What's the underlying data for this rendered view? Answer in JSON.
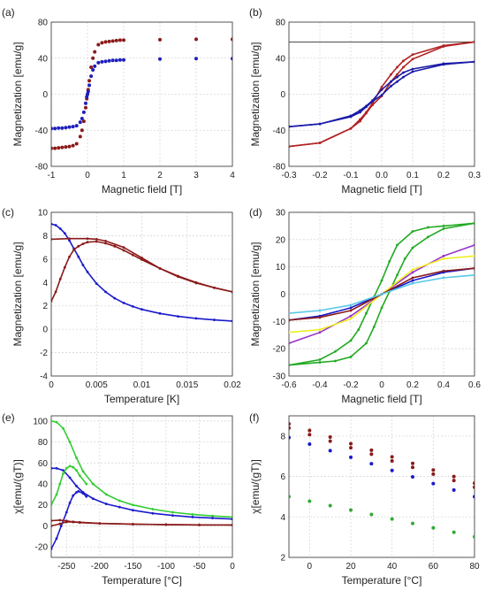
{
  "figure": {
    "panels": [
      {
        "id": "a",
        "label": "(a)",
        "xlabel": "Magnetic field [T]",
        "ylabel": "Magnetization [emu/g]",
        "xlim": [
          -1,
          4
        ],
        "ylim": [
          -80,
          80
        ],
        "xticks": [
          -1,
          0,
          1,
          2,
          3,
          4
        ],
        "yticks": [
          -80,
          -40,
          0,
          40,
          80
        ]
      },
      {
        "id": "b",
        "label": "(b)",
        "xlabel": "Magnetic field [T]",
        "ylabel": "Magnetization [emu/g]",
        "xlim": [
          -0.3,
          0.3
        ],
        "ylim": [
          -80,
          80
        ],
        "xticks": [
          -0.3,
          -0.2,
          -0.1,
          0.0,
          0.1,
          0.2,
          0.3
        ],
        "xtick_labels": [
          "-0.3",
          "-0.2",
          "-0.1",
          "0.0",
          "0.1",
          "0.2",
          "0.3"
        ],
        "yticks": [
          -80,
          -40,
          0,
          40,
          80
        ]
      },
      {
        "id": "c",
        "label": "(c)",
        "xlabel": "Temperature [K]",
        "ylabel": "Magnetization [emu/g]",
        "xlim": [
          0,
          0.02
        ],
        "ylim": [
          -4,
          10
        ],
        "xticks": [
          0,
          0.005,
          0.01,
          0.015,
          0.02
        ],
        "xtick_labels": [
          "0",
          "0.005",
          "0.01",
          "0.015",
          "0.02"
        ],
        "yticks": [
          -4,
          -2,
          0,
          2,
          4,
          6,
          8,
          10
        ]
      },
      {
        "id": "d",
        "label": "(d)",
        "xlabel": "Magnetic field [T]",
        "ylabel": "Magnetization [emu/g]",
        "xlim": [
          -0.6,
          0.6
        ],
        "ylim": [
          -30,
          30
        ],
        "xticks": [
          -0.6,
          -0.4,
          -0.2,
          0,
          0.2,
          0.4,
          0.6
        ],
        "xtick_labels": [
          "-0.6",
          "-0.4",
          "-0.2",
          "0",
          "0.2",
          "0.4",
          "0.6"
        ],
        "yticks": [
          -30,
          -20,
          -10,
          0,
          10,
          20,
          30
        ]
      },
      {
        "id": "e",
        "label": "(e)",
        "xlabel": "Temperature [°C]",
        "ylabel": "χ[emu/(gT)]",
        "xlim": [
          -273,
          0
        ],
        "ylim": [
          -30,
          105
        ],
        "xticks": [
          -250,
          -200,
          -150,
          -100,
          -50,
          0
        ],
        "yticks": [
          -20,
          0,
          20,
          40,
          60,
          80,
          100
        ]
      },
      {
        "id": "f",
        "label": "(f)",
        "xlabel": "Temperature [°C]",
        "ylabel": "χ[emu/(gT)]",
        "xlim": [
          -10,
          80
        ],
        "ylim": [
          2,
          9
        ],
        "xticks": [
          0,
          20,
          40,
          60,
          80
        ],
        "yticks": [
          2,
          4,
          6,
          8
        ]
      }
    ]
  },
  "chart_data": [
    {
      "type": "scatter",
      "panel": "a",
      "series": [
        {
          "color": "#8b1a1a",
          "x": [
            -1,
            -0.9,
            -0.8,
            -0.7,
            -0.6,
            -0.5,
            -0.4,
            -0.3,
            -0.2,
            -0.15,
            -0.1,
            -0.05,
            -0.02,
            0,
            0.02,
            0.05,
            0.1,
            0.15,
            0.2,
            0.3,
            0.4,
            0.5,
            0.6,
            0.7,
            0.8,
            0.9,
            1,
            2,
            3,
            4
          ],
          "y": [
            -60,
            -60,
            -59.5,
            -59,
            -58.5,
            -58,
            -57,
            -55,
            -47,
            -40,
            -30,
            -15,
            -5,
            0,
            5,
            15,
            30,
            40,
            47,
            55,
            57,
            58,
            58.5,
            59,
            59.5,
            60,
            60,
            60.5,
            61,
            61
          ]
        },
        {
          "color": "#1f1fbf",
          "x": [
            -1,
            -0.9,
            -0.8,
            -0.7,
            -0.6,
            -0.5,
            -0.4,
            -0.3,
            -0.2,
            -0.15,
            -0.1,
            -0.05,
            -0.02,
            0,
            0.02,
            0.05,
            0.1,
            0.15,
            0.2,
            0.3,
            0.4,
            0.5,
            0.6,
            0.7,
            0.8,
            0.9,
            1,
            2,
            3,
            4
          ],
          "y": [
            -38,
            -38,
            -37.5,
            -37.5,
            -37,
            -36.5,
            -36,
            -35,
            -31,
            -27,
            -20,
            -10,
            -3,
            0,
            3,
            10,
            20,
            27,
            31,
            35,
            36,
            36.5,
            37,
            37.5,
            37.5,
            38,
            38,
            39,
            39.5,
            39.5
          ]
        }
      ]
    },
    {
      "type": "line",
      "panel": "b",
      "series": [
        {
          "color": "#b22222",
          "x": [
            -0.3,
            -0.2,
            -0.1,
            -0.07,
            -0.05,
            -0.03,
            0,
            0.03,
            0.05,
            0.07,
            0.1,
            0.2,
            0.3
          ],
          "y": [
            -58,
            -54,
            -38,
            -30,
            -21,
            -12,
            -2,
            14,
            22,
            30,
            39,
            53,
            58
          ]
        },
        {
          "color": "#b22222",
          "x": [
            0.3,
            0.2,
            0.1,
            0.07,
            0.05,
            0.03,
            0,
            -0.03,
            -0.05,
            -0.07,
            -0.1,
            -0.2,
            -0.3
          ],
          "y": [
            58,
            54,
            44,
            37,
            30,
            22,
            8,
            -10,
            -20,
            -28,
            -38,
            -54,
            -58
          ]
        },
        {
          "color": "#1a1aa8",
          "x": [
            -0.3,
            -0.2,
            -0.1,
            -0.07,
            -0.05,
            -0.03,
            0,
            0.03,
            0.05,
            0.07,
            0.1,
            0.2,
            0.3
          ],
          "y": [
            -36,
            -33,
            -25,
            -20,
            -14,
            -8,
            -1,
            9,
            14,
            19,
            25,
            33,
            36
          ]
        },
        {
          "color": "#1a1aa8",
          "x": [
            0.3,
            0.2,
            0.1,
            0.07,
            0.05,
            0.03,
            0,
            -0.03,
            -0.05,
            -0.07,
            -0.1,
            -0.2,
            -0.3
          ],
          "y": [
            36,
            34,
            28,
            24,
            19,
            14,
            5,
            -7,
            -13,
            -18,
            -24,
            -33,
            -36
          ]
        }
      ],
      "reference_lines": [
        {
          "y": 58,
          "color": "#333333"
        }
      ]
    },
    {
      "type": "line",
      "panel": "c",
      "series": [
        {
          "color": "#1a1acc",
          "x": [
            0,
            0.0005,
            0.001,
            0.0015,
            0.002,
            0.0025,
            0.003,
            0.0035,
            0.004,
            0.005,
            0.006,
            0.007,
            0.008,
            0.009,
            0.01,
            0.012,
            0.014,
            0.016,
            0.018,
            0.02
          ],
          "y": [
            9.0,
            8.9,
            8.6,
            8.2,
            7.6,
            6.9,
            6.2,
            5.5,
            4.9,
            3.9,
            3.2,
            2.65,
            2.25,
            1.95,
            1.7,
            1.35,
            1.1,
            0.93,
            0.8,
            0.7
          ]
        },
        {
          "color": "#8b1a1a",
          "x": [
            0,
            0.0005,
            0.001,
            0.0015,
            0.002,
            0.0025,
            0.003,
            0.0035,
            0.004,
            0.005,
            0.006,
            0.007,
            0.008,
            0.009,
            0.01,
            0.012,
            0.014,
            0.016,
            0.018,
            0.02
          ],
          "y": [
            2.4,
            3.2,
            4.3,
            5.3,
            6.2,
            6.8,
            7.1,
            7.3,
            7.45,
            7.5,
            7.35,
            7.1,
            6.75,
            6.35,
            5.95,
            5.2,
            4.55,
            4.0,
            3.55,
            3.2
          ]
        },
        {
          "color": "#8b1a1a",
          "x": [
            0,
            0.002,
            0.004,
            0.005,
            0.006,
            0.008,
            0.01,
            0.012,
            0.014,
            0.016,
            0.018,
            0.02
          ],
          "y": [
            7.7,
            7.75,
            7.75,
            7.7,
            7.55,
            7.0,
            6.1,
            5.2,
            4.5,
            3.95,
            3.55,
            3.2
          ]
        }
      ]
    },
    {
      "type": "line",
      "panel": "d",
      "series": [
        {
          "color": "#22aa22",
          "x": [
            -0.6,
            -0.4,
            -0.3,
            -0.2,
            -0.15,
            -0.1,
            -0.05,
            0,
            0.05,
            0.1,
            0.2,
            0.3,
            0.4,
            0.6
          ],
          "y": [
            -26,
            -24,
            -21,
            -17,
            -13,
            -7,
            -1,
            5,
            12,
            18,
            23,
            24.5,
            25,
            26
          ]
        },
        {
          "color": "#22aa22",
          "x": [
            0.6,
            0.4,
            0.3,
            0.2,
            0.15,
            0.1,
            0.05,
            0,
            -0.05,
            -0.1,
            -0.2,
            -0.3,
            -0.4,
            -0.6
          ],
          "y": [
            26,
            24,
            21,
            17,
            13,
            7,
            1,
            -5,
            -12,
            -18,
            -23,
            -24.5,
            -25,
            -26
          ]
        },
        {
          "color": "#9932cc",
          "x": [
            -0.6,
            -0.4,
            -0.2,
            0,
            0.2,
            0.4,
            0.6
          ],
          "y": [
            -18,
            -14,
            -8,
            0,
            8,
            14,
            18
          ]
        },
        {
          "color": "#eeee22",
          "x": [
            -0.6,
            -0.4,
            -0.2,
            0,
            0.2,
            0.4,
            0.6
          ],
          "y": [
            -14,
            -13,
            -9,
            0,
            9,
            13,
            14
          ]
        },
        {
          "color": "#1a1acc",
          "x": [
            -0.6,
            -0.4,
            -0.2,
            0,
            0.2,
            0.4,
            0.6
          ],
          "y": [
            -9.5,
            -8,
            -5,
            0,
            5,
            8,
            9.5
          ]
        },
        {
          "color": "#8b1a1a",
          "x": [
            -0.6,
            -0.4,
            -0.2,
            0,
            0.2,
            0.4,
            0.6
          ],
          "y": [
            -9.5,
            -8.5,
            -6,
            0,
            6,
            8.5,
            9.5
          ]
        },
        {
          "color": "#5bc8e8",
          "x": [
            -0.6,
            -0.4,
            -0.2,
            0,
            0.2,
            0.4,
            0.6
          ],
          "y": [
            -7,
            -6,
            -4,
            0,
            4,
            6,
            7
          ]
        }
      ]
    },
    {
      "type": "line",
      "panel": "e",
      "series": [
        {
          "color": "#33cc33",
          "x": [
            -273,
            -265,
            -255,
            -245,
            -235,
            -225,
            -210,
            -190,
            -170,
            -150,
            -120,
            -90,
            -60,
            -30,
            0
          ],
          "y": [
            100,
            99,
            93,
            80,
            65,
            52,
            40,
            30,
            24,
            20,
            16,
            13,
            11,
            9.5,
            8.5
          ]
        },
        {
          "color": "#1a1acc",
          "x": [
            -273,
            -265,
            -255,
            -245,
            -235,
            -225,
            -210,
            -190,
            -170,
            -150,
            -120,
            -90,
            -60,
            -30,
            0
          ],
          "y": [
            55,
            55,
            53,
            46,
            38,
            32,
            26,
            21,
            18,
            15,
            12,
            10,
            8.5,
            7.5,
            6.5
          ]
        },
        {
          "color": "#33cc33",
          "x": [
            -273,
            -265,
            -260,
            -255,
            -250,
            -245,
            -240,
            -235,
            -230,
            -220
          ],
          "y": [
            20,
            30,
            40,
            50,
            55,
            57,
            56,
            53,
            48,
            40
          ]
        },
        {
          "color": "#1a1acc",
          "x": [
            -273,
            -265,
            -258,
            -250,
            -245,
            -240,
            -235,
            -232,
            -225,
            -220
          ],
          "y": [
            -22,
            -12,
            0,
            13,
            22,
            29,
            32,
            33,
            31,
            28
          ]
        },
        {
          "color": "#8b1a1a",
          "x": [
            -273,
            -260,
            -250,
            -240,
            -230,
            -200,
            -150,
            -100,
            -50,
            0
          ],
          "y": [
            5,
            5.5,
            4.8,
            3.8,
            3.2,
            2.3,
            1.6,
            1.2,
            1.0,
            0.9
          ]
        },
        {
          "color": "#8b1a1a",
          "x": [
            -273,
            -260,
            -250,
            -240,
            -230,
            -200,
            -150,
            -100,
            -50,
            0
          ],
          "y": [
            0,
            2,
            3.8,
            3.9,
            3.5,
            2.5,
            1.7,
            1.3,
            1.0,
            0.9
          ]
        }
      ]
    },
    {
      "type": "scatter",
      "panel": "f",
      "series": [
        {
          "color": "#8b1a1a",
          "x": [
            -10,
            0,
            10,
            20,
            30,
            40,
            50,
            60,
            70,
            80
          ],
          "y": [
            8.6,
            8.28,
            7.95,
            7.62,
            7.3,
            6.97,
            6.65,
            6.32,
            6.0,
            5.67
          ]
        },
        {
          "color": "#8b1a1a",
          "x": [
            -10,
            0,
            10,
            20,
            30,
            40,
            50,
            60,
            70,
            80
          ],
          "y": [
            8.4,
            8.07,
            7.75,
            7.42,
            7.1,
            6.77,
            6.45,
            6.12,
            5.8,
            5.47
          ]
        },
        {
          "color": "#1a1acc",
          "x": [
            -10,
            0,
            10,
            20,
            30,
            40,
            50,
            60,
            70,
            80
          ],
          "y": [
            7.92,
            7.6,
            7.28,
            6.95,
            6.63,
            6.3,
            5.98,
            5.65,
            5.33,
            5.0
          ]
        },
        {
          "color": "#33aa33",
          "x": [
            -10,
            0,
            10,
            20,
            30,
            40,
            50,
            60,
            70,
            80
          ],
          "y": [
            5.0,
            4.78,
            4.56,
            4.34,
            4.12,
            3.9,
            3.68,
            3.46,
            3.24,
            3.02
          ]
        }
      ]
    }
  ]
}
